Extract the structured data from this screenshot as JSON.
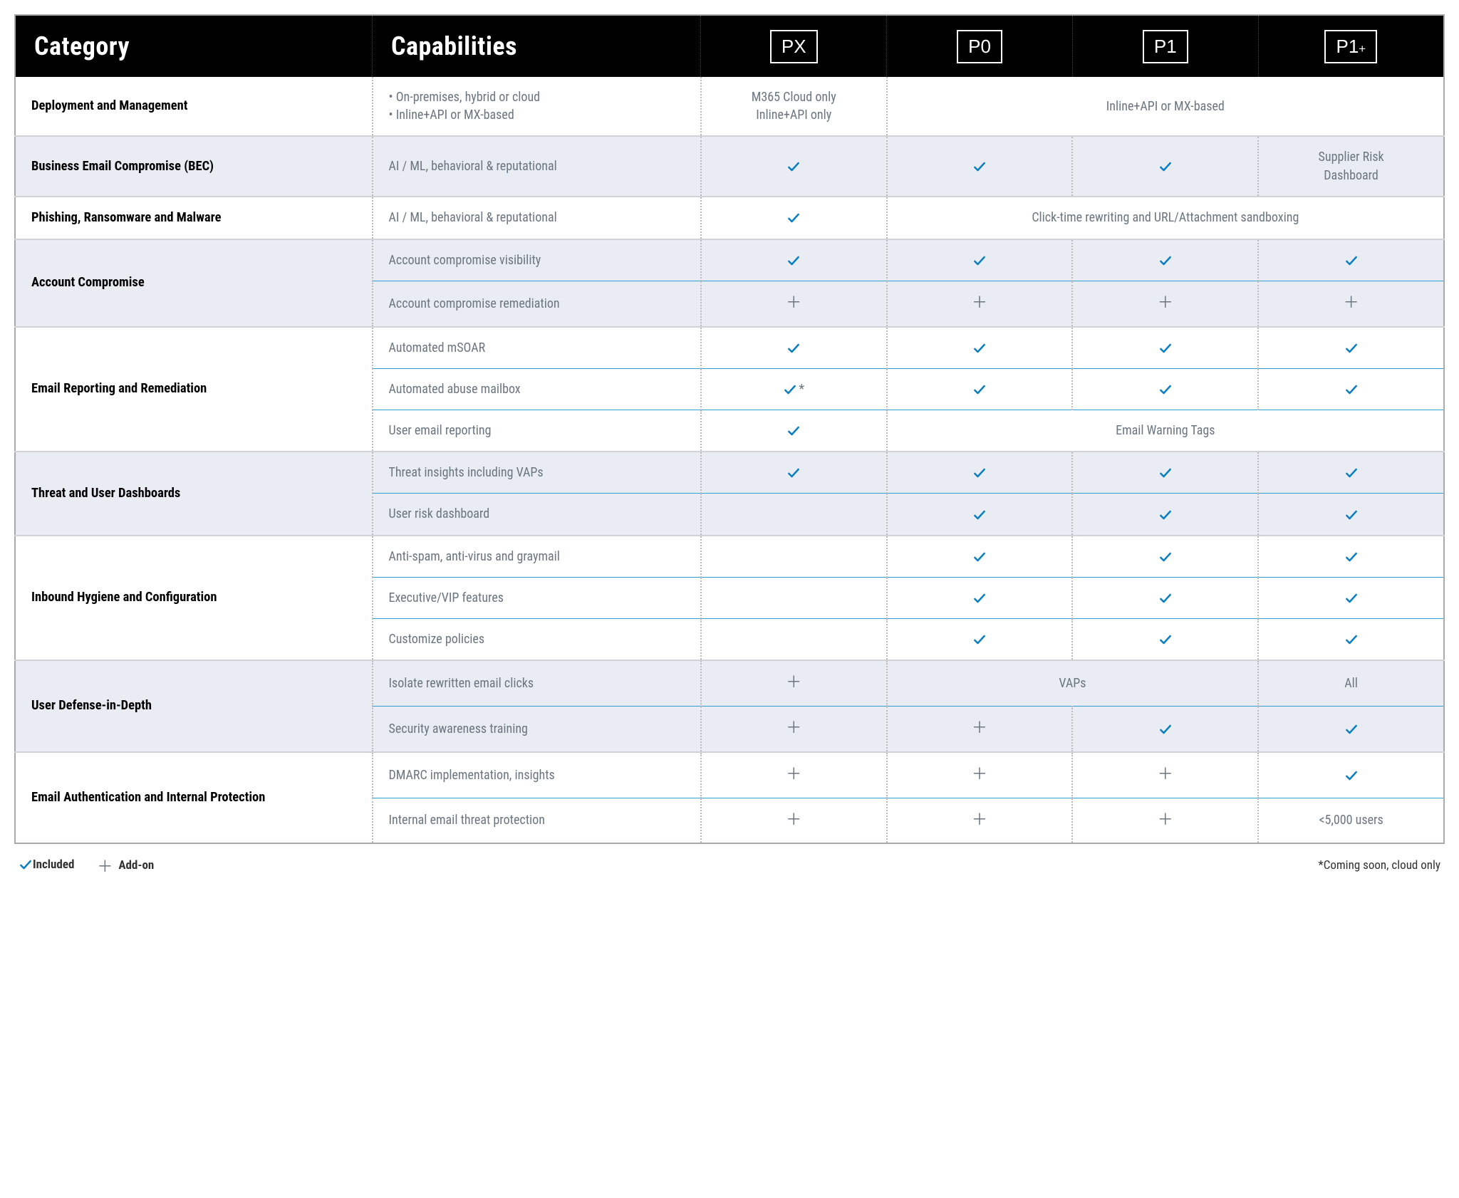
{
  "header": {
    "category": "Category",
    "capabilities": "Capabilities",
    "plans": [
      "PX",
      "P0",
      "P1",
      "P1+"
    ]
  },
  "legend": {
    "included": "Included",
    "addon": "Add-on",
    "footnote": "*Coming soon, cloud only"
  },
  "colors": {
    "check": "#0a7ec2",
    "plus": "#6b7680",
    "shade_bg": "#e9edf3",
    "header_bg": "#000000",
    "subrow_divider": "#2ea0d6"
  },
  "groups": [
    {
      "category": "Deployment and Management",
      "shade": false,
      "rows": [
        {
          "capability_html": "<ul class='cap-bullets'><li>On-premises, hybrid or cloud</li><li>Inline+API or MX-based</li></ul>",
          "cells": [
            {
              "type": "text",
              "value": "M365 Cloud only<br>Inline+API only"
            },
            {
              "type": "span",
              "span": 3,
              "value": "Inline+API or MX-based"
            }
          ]
        }
      ]
    },
    {
      "category": "Business Email Compromise (BEC)",
      "shade": true,
      "rows": [
        {
          "capability": "AI / ML, behavioral & reputational",
          "cells": [
            {
              "type": "check"
            },
            {
              "type": "check"
            },
            {
              "type": "check"
            },
            {
              "type": "text",
              "value": "Supplier Risk<br>Dashboard"
            }
          ]
        }
      ]
    },
    {
      "category": "Phishing, Ransomware and Malware",
      "shade": false,
      "rows": [
        {
          "capability": "AI / ML, behavioral & reputational",
          "cells": [
            {
              "type": "check"
            },
            {
              "type": "span",
              "span": 3,
              "value": "Click-time rewriting and URL/Attachment sandboxing"
            }
          ]
        }
      ]
    },
    {
      "category": "Account Compromise",
      "shade": true,
      "rows": [
        {
          "capability": "Account compromise visibility",
          "cells": [
            {
              "type": "check"
            },
            {
              "type": "check"
            },
            {
              "type": "check"
            },
            {
              "type": "check"
            }
          ]
        },
        {
          "capability": "Account compromise remediation",
          "cells": [
            {
              "type": "plus"
            },
            {
              "type": "plus"
            },
            {
              "type": "plus"
            },
            {
              "type": "plus"
            }
          ]
        }
      ]
    },
    {
      "category": "Email Reporting and Remediation",
      "shade": false,
      "rows": [
        {
          "capability": "Automated mSOAR",
          "cells": [
            {
              "type": "check"
            },
            {
              "type": "check"
            },
            {
              "type": "check"
            },
            {
              "type": "check"
            }
          ]
        },
        {
          "capability": "Automated abuse mailbox",
          "cells": [
            {
              "type": "check",
              "suffix": "*"
            },
            {
              "type": "check"
            },
            {
              "type": "check"
            },
            {
              "type": "check"
            }
          ]
        },
        {
          "capability": "User email reporting",
          "cells": [
            {
              "type": "check"
            },
            {
              "type": "span",
              "span": 3,
              "value": "Email Warning Tags"
            }
          ]
        }
      ]
    },
    {
      "category": "Threat and User Dashboards",
      "shade": true,
      "rows": [
        {
          "capability": "Threat insights including VAPs",
          "cells": [
            {
              "type": "check"
            },
            {
              "type": "check"
            },
            {
              "type": "check"
            },
            {
              "type": "check"
            }
          ]
        },
        {
          "capability": "User risk dashboard",
          "cells": [
            {
              "type": "blank"
            },
            {
              "type": "check"
            },
            {
              "type": "check"
            },
            {
              "type": "check"
            }
          ]
        }
      ]
    },
    {
      "category": "Inbound Hygiene and Configuration",
      "shade": false,
      "rows": [
        {
          "capability": "Anti-spam, anti-virus and graymail",
          "cells": [
            {
              "type": "blank"
            },
            {
              "type": "check"
            },
            {
              "type": "check"
            },
            {
              "type": "check"
            }
          ]
        },
        {
          "capability": "Executive/VIP features",
          "cells": [
            {
              "type": "blank"
            },
            {
              "type": "check"
            },
            {
              "type": "check"
            },
            {
              "type": "check"
            }
          ]
        },
        {
          "capability": "Customize policies",
          "cells": [
            {
              "type": "blank"
            },
            {
              "type": "check"
            },
            {
              "type": "check"
            },
            {
              "type": "check"
            }
          ]
        }
      ]
    },
    {
      "category": "User Defense-in-Depth",
      "shade": true,
      "rows": [
        {
          "capability": "Isolate rewritten email clicks",
          "cells": [
            {
              "type": "plus"
            },
            {
              "type": "span",
              "span": 2,
              "value": "VAPs"
            },
            {
              "type": "text",
              "value": "All"
            }
          ]
        },
        {
          "capability": "Security awareness training",
          "cells": [
            {
              "type": "plus"
            },
            {
              "type": "plus"
            },
            {
              "type": "check"
            },
            {
              "type": "check"
            }
          ]
        }
      ]
    },
    {
      "category": "Email Authentication and Internal Protection",
      "shade": false,
      "rows": [
        {
          "capability": "DMARC implementation, insights",
          "cells": [
            {
              "type": "plus"
            },
            {
              "type": "plus"
            },
            {
              "type": "plus"
            },
            {
              "type": "check"
            }
          ]
        },
        {
          "capability": "Internal email threat protection",
          "cells": [
            {
              "type": "plus"
            },
            {
              "type": "plus"
            },
            {
              "type": "plus"
            },
            {
              "type": "text",
              "value": "<5,000 users"
            }
          ]
        }
      ]
    }
  ]
}
